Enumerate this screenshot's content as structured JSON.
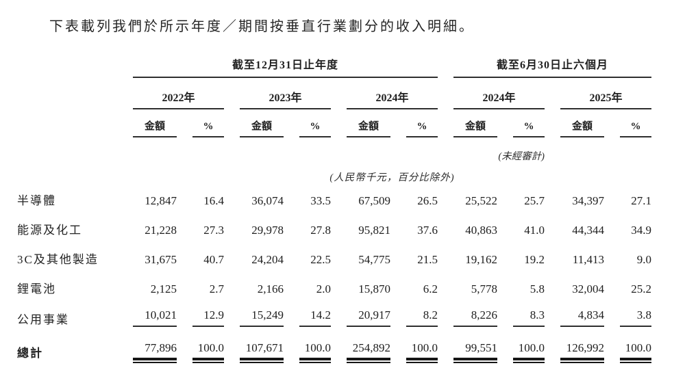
{
  "title": "下表載列我們於所示年度／期間按垂直行業劃分的收入明細。",
  "table": {
    "group_headers": {
      "annual": "截至12月31日止年度",
      "interim": "截至6月30日止六個月"
    },
    "year_headers": [
      "2022年",
      "2023年",
      "2024年",
      "2024年",
      "2025年"
    ],
    "sub_headers": {
      "amount": "金額",
      "percent": "%"
    },
    "unaudited_note": "(未經審計)",
    "currency_note": "(人民幣千元，百分比除外)",
    "rows": [
      {
        "label": "半導體",
        "values": [
          "12,847",
          "16.4",
          "36,074",
          "33.5",
          "67,509",
          "26.5",
          "25,522",
          "25.7",
          "34,397",
          "27.1"
        ]
      },
      {
        "label": "能源及化工",
        "values": [
          "21,228",
          "27.3",
          "29,978",
          "27.8",
          "95,821",
          "37.6",
          "40,863",
          "41.0",
          "44,344",
          "34.9"
        ]
      },
      {
        "label": "3C及其他製造",
        "values": [
          "31,675",
          "40.7",
          "24,204",
          "22.5",
          "54,775",
          "21.5",
          "19,162",
          "19.2",
          "11,413",
          "9.0"
        ]
      },
      {
        "label": "鋰電池",
        "values": [
          "2,125",
          "2.7",
          "2,166",
          "2.0",
          "15,870",
          "6.2",
          "5,778",
          "5.8",
          "32,004",
          "25.2"
        ]
      },
      {
        "label": "公用事業",
        "values": [
          "10,021",
          "12.9",
          "15,249",
          "14.2",
          "20,917",
          "8.2",
          "8,226",
          "8.3",
          "4,834",
          "3.8"
        ]
      },
      {
        "label": "總計",
        "values": [
          "77,896",
          "100.0",
          "107,671",
          "100.0",
          "254,892",
          "100.0",
          "99,551",
          "100.0",
          "126,992",
          "100.0"
        ]
      }
    ]
  }
}
